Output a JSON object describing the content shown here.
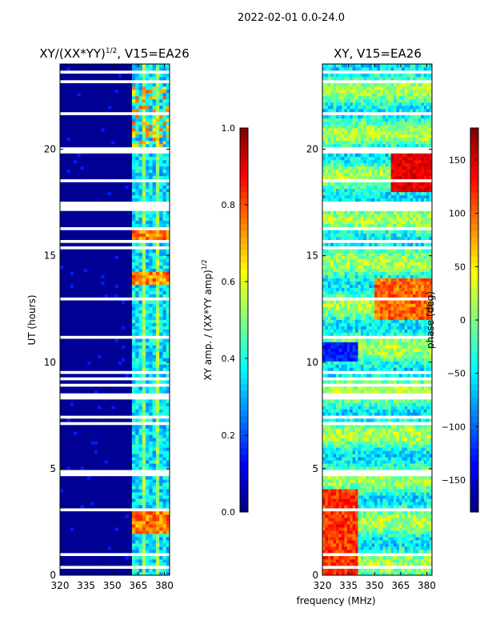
{
  "figure": {
    "suptitle": "2022-02-01 0.0-24.0",
    "xlabel_shared": "frequency (MHz)"
  },
  "chart_data": [
    {
      "type": "heatmap",
      "id": "amp",
      "title_main": "XY/(XX*YY)",
      "title_exp": "1/2",
      "title_tail": ", V15=EA26",
      "xlabel": "",
      "ylabel": "UT (hours)",
      "xlim": [
        320,
        383
      ],
      "ylim": [
        0,
        24
      ],
      "x_ticks": [
        320,
        335,
        350,
        365,
        380
      ],
      "y_ticks": [
        0,
        5,
        10,
        15,
        20
      ],
      "colorbar": {
        "label_main": "XY amp. / (XX*YY amp)",
        "label_exp": "1/2",
        "range": [
          0.0,
          1.0
        ],
        "ticks": [
          0.0,
          0.2,
          0.4,
          0.6,
          0.8,
          1.0
        ],
        "tick_labels": [
          "0.0",
          "0.2",
          "0.4",
          "0.6",
          "0.8",
          "1.0"
        ],
        "colormap": "jet"
      },
      "description_values": {
        "background_level": 0.02,
        "band_start_mhz": 362,
        "hot_band_hours": [
          [
            2.0,
            3.0
          ],
          [
            13.6,
            14.3
          ],
          [
            15.6,
            16.2
          ]
        ],
        "hot_level": 0.85
      }
    },
    {
      "type": "heatmap",
      "id": "phase",
      "title": "XY, V15=EA26",
      "xlabel": "frequency (MHz)",
      "ylabel": "",
      "xlim": [
        320,
        383
      ],
      "ylim": [
        0,
        24
      ],
      "x_ticks": [
        320,
        335,
        350,
        365,
        380
      ],
      "y_ticks": [
        0,
        5,
        10,
        15,
        20
      ],
      "colorbar": {
        "label": "phase (deg)",
        "range": [
          -180,
          180
        ],
        "ticks": [
          -150,
          -100,
          -50,
          0,
          50,
          100,
          150
        ],
        "tick_labels": [
          "−150",
          "−100",
          "−50",
          "0",
          "50",
          "100",
          "150"
        ],
        "colormap": "jet"
      }
    }
  ],
  "colors": {
    "masked": "#ffffff",
    "axis": "#000000"
  }
}
